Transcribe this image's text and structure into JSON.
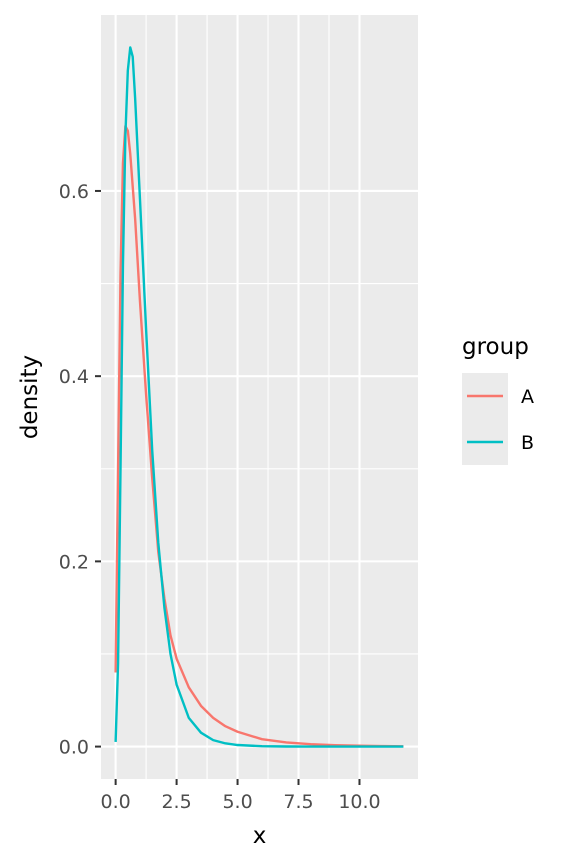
{
  "chart_data": {
    "type": "line",
    "title": "",
    "xlabel": "x",
    "ylabel": "density",
    "xlim": [
      -0.6,
      12.4
    ],
    "ylim": [
      -0.035,
      0.79
    ],
    "x_ticks": [
      0,
      2.5,
      5,
      7.5,
      10
    ],
    "x_tick_labels": [
      "0.0",
      "2.5",
      "5.0",
      "7.5",
      "10.0"
    ],
    "y_ticks": [
      0,
      0.2,
      0.4,
      0.6
    ],
    "y_tick_labels": [
      "0.0",
      "0.2",
      "0.4",
      "0.6"
    ],
    "grid": true,
    "legend": {
      "title": "group",
      "position": "right"
    },
    "series": [
      {
        "name": "A",
        "color": "#F8766D",
        "points": [
          [
            0.0,
            0.08
          ],
          [
            0.1,
            0.3
          ],
          [
            0.2,
            0.51
          ],
          [
            0.3,
            0.63
          ],
          [
            0.4,
            0.67
          ],
          [
            0.5,
            0.665
          ],
          [
            0.6,
            0.64
          ],
          [
            0.8,
            0.57
          ],
          [
            1.0,
            0.48
          ],
          [
            1.25,
            0.38
          ],
          [
            1.5,
            0.29
          ],
          [
            1.75,
            0.21
          ],
          [
            2.0,
            0.16
          ],
          [
            2.25,
            0.12
          ],
          [
            2.5,
            0.095
          ],
          [
            3.0,
            0.064
          ],
          [
            3.5,
            0.044
          ],
          [
            4.0,
            0.031
          ],
          [
            4.5,
            0.022
          ],
          [
            5.0,
            0.016
          ],
          [
            6.0,
            0.008
          ],
          [
            7.0,
            0.0045
          ],
          [
            8.0,
            0.0026
          ],
          [
            9.0,
            0.0015
          ],
          [
            10.0,
            0.0009
          ],
          [
            11.0,
            0.0005
          ],
          [
            11.8,
            0.0003
          ]
        ]
      },
      {
        "name": "B",
        "color": "#00BFC4",
        "points": [
          [
            0.0,
            0.005
          ],
          [
            0.1,
            0.09
          ],
          [
            0.2,
            0.3
          ],
          [
            0.3,
            0.52
          ],
          [
            0.4,
            0.66
          ],
          [
            0.5,
            0.73
          ],
          [
            0.6,
            0.755
          ],
          [
            0.7,
            0.745
          ],
          [
            0.8,
            0.7
          ],
          [
            1.0,
            0.59
          ],
          [
            1.25,
            0.45
          ],
          [
            1.5,
            0.32
          ],
          [
            1.75,
            0.22
          ],
          [
            2.0,
            0.15
          ],
          [
            2.25,
            0.1
          ],
          [
            2.5,
            0.067
          ],
          [
            3.0,
            0.031
          ],
          [
            3.5,
            0.015
          ],
          [
            4.0,
            0.007
          ],
          [
            4.5,
            0.0035
          ],
          [
            5.0,
            0.0017
          ],
          [
            6.0,
            0.0004
          ],
          [
            7.0,
            0.0001
          ],
          [
            8.0,
            0.0
          ],
          [
            9.0,
            0.0
          ],
          [
            10.0,
            0.0
          ],
          [
            11.0,
            0.0
          ],
          [
            11.8,
            0.0
          ]
        ]
      }
    ]
  },
  "colors": {
    "panel_background": "#EBEBEB",
    "grid_major": "#FFFFFF",
    "tick_mark": "#333333"
  }
}
